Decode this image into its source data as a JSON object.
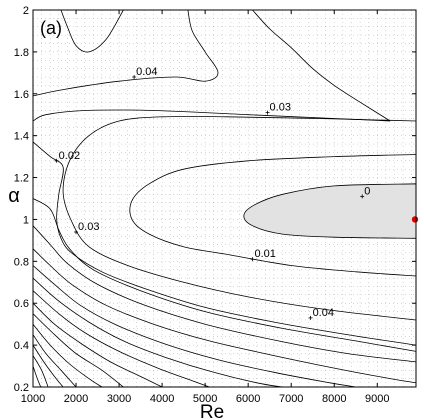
{
  "chart_data": {
    "type": "contour",
    "panel_label": "(a)",
    "xlabel": "Re",
    "ylabel": "α",
    "xlim": [
      1000,
      9900
    ],
    "ylim": [
      0.2,
      2.0
    ],
    "xticks": [
      "1000",
      "2000",
      "3000",
      "4000",
      "5000",
      "6000",
      "7000",
      "8000",
      "9000"
    ],
    "yticks": [
      "0.2",
      "0.4",
      "0.6",
      "0.8",
      "1",
      "1.2",
      "1.4",
      "1.6",
      "1.8",
      "2"
    ],
    "grid": "dotted",
    "colors": {
      "contour": "#000000",
      "shade": "#e2e2e2",
      "marker": "#e00000",
      "grid": "#9a9a9a"
    },
    "neutral_region_label": "0",
    "marker_point": {
      "Re": 9900,
      "alpha": 1.0
    },
    "contour_labels": [
      {
        "text": "0.04",
        "Re": 3350,
        "alpha": 1.68
      },
      {
        "text": "0.03",
        "Re": 6450,
        "alpha": 1.51
      },
      {
        "text": "0.02",
        "Re": 1550,
        "alpha": 1.28
      },
      {
        "text": "0",
        "Re": 8650,
        "alpha": 1.11
      },
      {
        "text": "0.03",
        "Re": 2000,
        "alpha": 0.94
      },
      {
        "text": "0.01",
        "Re": 6100,
        "alpha": 0.81
      },
      {
        "text": "0.04",
        "Re": 7450,
        "alpha": 0.53
      }
    ],
    "contours": [
      {
        "id": "shaded-zero",
        "points": [
          [
            9900,
            1.17
          ],
          [
            8000,
            1.16
          ],
          [
            6800,
            1.12
          ],
          [
            6150,
            1.07
          ],
          [
            5900,
            1.02
          ],
          [
            6100,
            0.97
          ],
          [
            6800,
            0.93
          ],
          [
            8000,
            0.915
          ],
          [
            9900,
            0.91
          ]
        ]
      },
      {
        "id": "c001",
        "points": [
          [
            9900,
            1.31
          ],
          [
            8000,
            1.3
          ],
          [
            6000,
            1.28
          ],
          [
            4500,
            1.24
          ],
          [
            3700,
            1.17
          ],
          [
            3300,
            1.09
          ],
          [
            3300,
            1.0
          ],
          [
            3700,
            0.93
          ],
          [
            4500,
            0.87
          ],
          [
            5600,
            0.83
          ],
          [
            7000,
            0.78
          ],
          [
            8500,
            0.75
          ],
          [
            9900,
            0.73
          ]
        ]
      },
      {
        "id": "c002",
        "points": [
          [
            9900,
            1.47
          ],
          [
            8000,
            1.48
          ],
          [
            5500,
            1.49
          ],
          [
            4000,
            1.49
          ],
          [
            3000,
            1.47
          ],
          [
            2300,
            1.4
          ],
          [
            1850,
            1.28
          ],
          [
            1700,
            1.13
          ],
          [
            1900,
            0.99
          ],
          [
            2300,
            0.87
          ],
          [
            3200,
            0.78
          ],
          [
            4500,
            0.7
          ],
          [
            6000,
            0.63
          ],
          [
            7800,
            0.57
          ],
          [
            9900,
            0.52
          ]
        ]
      },
      {
        "id": "c003",
        "points": [
          [
            9300,
            1.47
          ],
          [
            8600,
            1.56
          ],
          [
            8000,
            1.64
          ],
          [
            7500,
            1.72
          ],
          [
            7000,
            1.82
          ],
          [
            6500,
            1.91
          ],
          [
            6100,
            2.0
          ]
        ]
      },
      {
        "id": "c004a",
        "points": [
          [
            1000,
            1.47
          ],
          [
            1300,
            1.5
          ],
          [
            2200,
            1.52
          ],
          [
            3800,
            1.52
          ],
          [
            6000,
            1.5
          ],
          [
            8200,
            1.48
          ],
          [
            9300,
            1.47
          ]
        ]
      },
      {
        "id": "c004b",
        "points": [
          [
            1000,
            1.37
          ],
          [
            1400,
            1.3
          ],
          [
            1700,
            1.25
          ],
          [
            1600,
            1.12
          ],
          [
            1550,
            1.0
          ],
          [
            1650,
            0.91
          ],
          [
            1900,
            0.84
          ],
          [
            2600,
            0.75
          ],
          [
            3600,
            0.67
          ],
          [
            5000,
            0.58
          ],
          [
            6600,
            0.51
          ],
          [
            8300,
            0.45
          ],
          [
            9900,
            0.4
          ]
        ]
      },
      {
        "id": "c005",
        "points": [
          [
            1000,
            1.59
          ],
          [
            1700,
            1.62
          ],
          [
            3000,
            1.66
          ],
          [
            4300,
            1.68
          ],
          [
            5000,
            1.66
          ],
          [
            5300,
            1.7
          ],
          [
            5000,
            1.8
          ],
          [
            4700,
            1.9
          ],
          [
            4600,
            2.0
          ]
        ]
      },
      {
        "id": "c006",
        "points": [
          [
            1000,
            1.1
          ],
          [
            1400,
            1.05
          ],
          [
            1600,
            0.95
          ],
          [
            1850,
            0.86
          ],
          [
            2400,
            0.76
          ],
          [
            3500,
            0.66
          ],
          [
            5000,
            0.56
          ],
          [
            6800,
            0.48
          ],
          [
            8500,
            0.42
          ],
          [
            9900,
            0.37
          ]
        ]
      },
      {
        "id": "c007",
        "points": [
          [
            1000,
            0.97
          ],
          [
            1400,
            0.88
          ],
          [
            1800,
            0.79
          ],
          [
            2500,
            0.69
          ],
          [
            3600,
            0.59
          ],
          [
            5000,
            0.5
          ],
          [
            6700,
            0.42
          ],
          [
            8300,
            0.36
          ],
          [
            9900,
            0.32
          ]
        ]
      },
      {
        "id": "c008",
        "points": [
          [
            1000,
            0.86
          ],
          [
            1400,
            0.78
          ],
          [
            1900,
            0.69
          ],
          [
            2700,
            0.59
          ],
          [
            3800,
            0.5
          ],
          [
            5100,
            0.42
          ],
          [
            6600,
            0.35
          ],
          [
            8000,
            0.29
          ],
          [
            9300,
            0.24
          ],
          [
            9900,
            0.22
          ]
        ]
      },
      {
        "id": "c009",
        "points": [
          [
            1000,
            0.78
          ],
          [
            1500,
            0.69
          ],
          [
            2100,
            0.59
          ],
          [
            2900,
            0.5
          ],
          [
            4000,
            0.41
          ],
          [
            5300,
            0.33
          ],
          [
            6600,
            0.27
          ],
          [
            7900,
            0.22
          ],
          [
            8500,
            0.2
          ]
        ]
      },
      {
        "id": "c010",
        "points": [
          [
            1000,
            0.72
          ],
          [
            1600,
            0.61
          ],
          [
            2300,
            0.51
          ],
          [
            3100,
            0.42
          ],
          [
            4100,
            0.34
          ],
          [
            5200,
            0.27
          ],
          [
            6200,
            0.22
          ],
          [
            6800,
            0.2
          ]
        ]
      },
      {
        "id": "c011",
        "points": [
          [
            1000,
            0.66
          ],
          [
            1600,
            0.55
          ],
          [
            2200,
            0.46
          ],
          [
            3000,
            0.37
          ],
          [
            3900,
            0.29
          ],
          [
            4700,
            0.23
          ],
          [
            5100,
            0.2
          ]
        ]
      },
      {
        "id": "c012",
        "points": [
          [
            1000,
            0.6
          ],
          [
            1500,
            0.5
          ],
          [
            2100,
            0.41
          ],
          [
            2800,
            0.32
          ],
          [
            3500,
            0.25
          ],
          [
            4000,
            0.2
          ]
        ]
      },
      {
        "id": "c013",
        "points": [
          [
            1000,
            0.55
          ],
          [
            1500,
            0.45
          ],
          [
            2000,
            0.36
          ],
          [
            2600,
            0.28
          ],
          [
            3100,
            0.2
          ]
        ]
      },
      {
        "id": "c014",
        "points": [
          [
            1000,
            0.5
          ],
          [
            1400,
            0.4
          ],
          [
            1850,
            0.31
          ],
          [
            2300,
            0.24
          ],
          [
            2600,
            0.2
          ]
        ]
      },
      {
        "id": "c015",
        "points": [
          [
            1000,
            0.45
          ],
          [
            1300,
            0.36
          ],
          [
            1650,
            0.28
          ],
          [
            2000,
            0.2
          ]
        ]
      },
      {
        "id": "c016",
        "points": [
          [
            1000,
            0.4
          ],
          [
            1250,
            0.32
          ],
          [
            1500,
            0.25
          ],
          [
            1700,
            0.2
          ]
        ]
      },
      {
        "id": "c017",
        "points": [
          [
            1000,
            0.35
          ],
          [
            1200,
            0.28
          ],
          [
            1350,
            0.2
          ]
        ]
      },
      {
        "id": "c018",
        "points": [
          [
            1000,
            0.3
          ],
          [
            1100,
            0.24
          ],
          [
            1180,
            0.2
          ]
        ]
      },
      {
        "id": "c019",
        "points": [
          [
            1650,
            2.0
          ],
          [
            1800,
            1.92
          ],
          [
            2000,
            1.83
          ],
          [
            2300,
            1.8
          ],
          [
            2700,
            1.86
          ],
          [
            3100,
            2.0
          ]
        ]
      }
    ]
  }
}
